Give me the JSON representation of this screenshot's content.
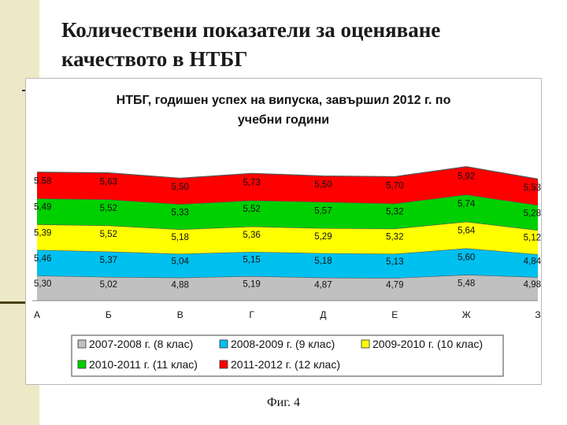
{
  "slide": {
    "title": "Количествени показатели за оценяване качеството в НТБГ",
    "caption": "Фиг. 4"
  },
  "colors": {
    "background_band": "#ede9c7",
    "series": [
      "#c0c0c0",
      "#00c0f0",
      "#ffff00",
      "#00d000",
      "#ff0000"
    ]
  },
  "chart_data": {
    "type": "area",
    "stacked": true,
    "title": "НТБГ, годишен успех на випуска, завършил 2012 г. по учебни години",
    "title_lines": [
      "НТБГ, годишен успех на випуска, завършил 2012 г. по",
      "учебни години"
    ],
    "categories": [
      "А",
      "Б",
      "В",
      "Г",
      "Д",
      "Е",
      "Ж",
      "З"
    ],
    "legend_position": "bottom",
    "series": [
      {
        "name": "2007-2008 г. (8 клас)",
        "color": "#c0c0c0",
        "values": [
          5.3,
          5.02,
          4.88,
          5.19,
          4.87,
          4.79,
          5.48,
          4.98
        ],
        "labels": [
          "5,30",
          "5,02",
          "4,88",
          "5,19",
          "4,87",
          "4,79",
          "5,48",
          "4,98"
        ]
      },
      {
        "name": "2008-2009 г. (9 клас)",
        "color": "#00c0f0",
        "values": [
          5.46,
          5.37,
          5.04,
          5.15,
          5.18,
          5.13,
          5.6,
          4.84
        ],
        "labels": [
          "5,46",
          "5,37",
          "5,04",
          "5,15",
          "5,18",
          "5,13",
          "5,60",
          "4,84"
        ]
      },
      {
        "name": "2009-2010 г. (10 клас)",
        "color": "#ffff00",
        "values": [
          5.39,
          5.52,
          5.18,
          5.36,
          5.29,
          5.32,
          5.64,
          5.12
        ],
        "labels": [
          "5,39",
          "5,52",
          "5,18",
          "5,36",
          "5,29",
          "5,32",
          "5,64",
          "5,12"
        ]
      },
      {
        "name": "2010-2011 г. (11 клас)",
        "color": "#00d000",
        "values": [
          5.49,
          5.52,
          5.33,
          5.52,
          5.57,
          5.32,
          5.74,
          5.28
        ],
        "labels": [
          "5,49",
          "5,52",
          "5,33",
          "5,52",
          "5,57",
          "5,32",
          "5,74",
          "5,28"
        ]
      },
      {
        "name": "2011-2012 г. (12 клас)",
        "color": "#ff0000",
        "values": [
          5.58,
          5.63,
          5.5,
          5.73,
          5.5,
          5.7,
          5.92,
          5.53
        ],
        "labels": [
          "5,58",
          "5,63",
          "5,50",
          "5,73",
          "5,50",
          "5,70",
          "5,92",
          "5,53"
        ]
      }
    ]
  }
}
